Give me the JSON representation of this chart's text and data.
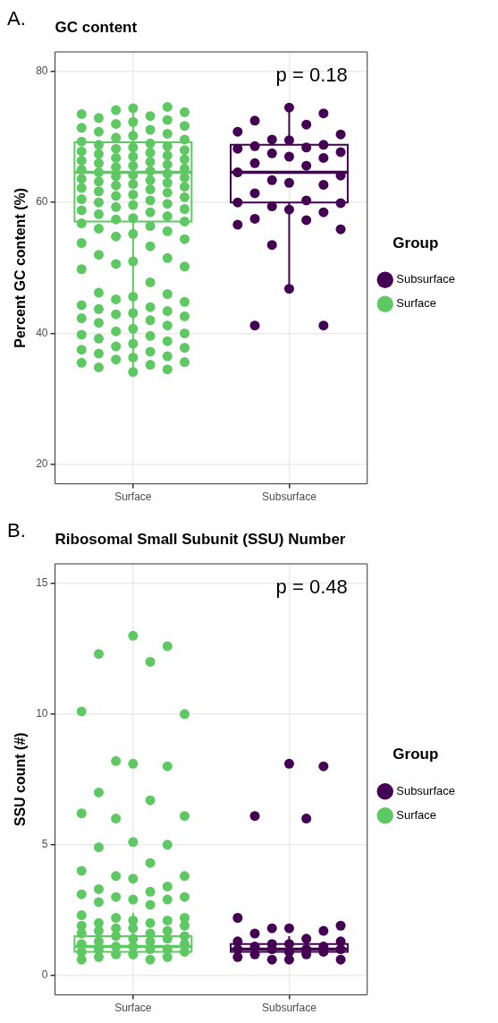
{
  "chart_data": [
    {
      "type": "box",
      "title": "GC content",
      "ylabel": "Percent GC content (%)",
      "legend_title": "Group",
      "legend": "right",
      "grid": true,
      "marker": "circle",
      "categories": [
        "Surface",
        "Subsurface"
      ],
      "colors": [
        "#5ec962",
        "#440154"
      ],
      "boxes": [
        {
          "low": 34.1,
          "q1": 57.1,
          "median": 64.6,
          "q3": 69.2,
          "high": 74.6
        },
        {
          "low": 46.8,
          "q1": 60.0,
          "median": 64.6,
          "q3": 68.8,
          "high": 74.3
        }
      ],
      "ylim": [
        17,
        83
      ],
      "yticks": [
        20,
        40,
        60,
        80
      ],
      "annotations": [
        "A.",
        "p = 0.18"
      ],
      "series": [
        {
          "name": "Subsurface",
          "type": "scatter",
          "color": "#440154",
          "x": [
            "Subsurface",
            "Subsurface",
            "Subsurface",
            "Subsurface",
            "Subsurface",
            "Subsurface",
            "Subsurface",
            "Subsurface",
            "Subsurface",
            "Subsurface",
            "Subsurface",
            "Subsurface",
            "Subsurface",
            "Subsurface",
            "Subsurface",
            "Subsurface",
            "Subsurface",
            "Subsurface",
            "Subsurface",
            "Subsurface",
            "Subsurface",
            "Subsurface",
            "Subsurface",
            "Subsurface",
            "Subsurface",
            "Subsurface",
            "Subsurface",
            "Subsurface",
            "Subsurface",
            "Subsurface",
            "Subsurface",
            "Subsurface",
            "Subsurface",
            "Subsurface",
            "Subsurface",
            "Subsurface",
            "Subsurface",
            "Subsurface"
          ],
          "values": [
            74.5,
            73.6,
            72.5,
            71.9,
            70.8,
            70.4,
            69.6,
            69.5,
            68.8,
            68.6,
            68.4,
            68.2,
            67.7,
            67.5,
            67.0,
            66.8,
            66.0,
            65.6,
            64.6,
            64.1,
            63.4,
            63.0,
            62.7,
            61.4,
            60.3,
            60.0,
            59.9,
            59.4,
            58.9,
            58.5,
            57.5,
            57.3,
            56.6,
            55.9,
            53.5,
            46.8,
            41.2,
            41.2
          ]
        },
        {
          "name": "Surface",
          "type": "scatter",
          "color": "#5ec962",
          "x": [
            "Surface",
            "Surface",
            "Surface",
            "Surface",
            "Surface",
            "Surface",
            "Surface",
            "Surface",
            "Surface",
            "Surface",
            "Surface",
            "Surface",
            "Surface",
            "Surface",
            "Surface",
            "Surface",
            "Surface",
            "Surface",
            "Surface",
            "Surface",
            "Surface",
            "Surface",
            "Surface",
            "Surface",
            "Surface",
            "Surface",
            "Surface",
            "Surface",
            "Surface",
            "Surface",
            "Surface",
            "Surface",
            "Surface",
            "Surface",
            "Surface",
            "Surface",
            "Surface",
            "Surface",
            "Surface",
            "Surface",
            "Surface",
            "Surface",
            "Surface",
            "Surface",
            "Surface",
            "Surface",
            "Surface",
            "Surface",
            "Surface",
            "Surface",
            "Surface",
            "Surface",
            "Surface",
            "Surface",
            "Surface",
            "Surface",
            "Surface",
            "Surface",
            "Surface",
            "Surface",
            "Surface",
            "Surface",
            "Surface",
            "Surface",
            "Surface",
            "Surface",
            "Surface",
            "Surface",
            "Surface",
            "Surface",
            "Surface",
            "Surface",
            "Surface",
            "Surface",
            "Surface",
            "Surface",
            "Surface",
            "Surface",
            "Surface",
            "Surface",
            "Surface",
            "Surface",
            "Surface",
            "Surface",
            "Surface",
            "Surface",
            "Surface",
            "Surface",
            "Surface",
            "Surface",
            "Surface",
            "Surface",
            "Surface",
            "Surface",
            "Surface",
            "Surface",
            "Surface",
            "Surface",
            "Surface",
            "Surface",
            "Surface",
            "Surface",
            "Surface",
            "Surface",
            "Surface",
            "Surface",
            "Surface",
            "Surface",
            "Surface",
            "Surface",
            "Surface",
            "Surface",
            "Surface",
            "Surface",
            "Surface",
            "Surface",
            "Surface",
            "Surface",
            "Surface",
            "Surface",
            "Surface",
            "Surface",
            "Surface",
            "Surface",
            "Surface",
            "Surface",
            "Surface",
            "Surface"
          ],
          "values": [
            34.1,
            34.5,
            34.8,
            35.2,
            35.5,
            35.6,
            36.0,
            36.3,
            36.5,
            36.9,
            37.2,
            37.5,
            37.8,
            38.0,
            38.4,
            38.8,
            39.2,
            39.6,
            39.8,
            40.0,
            40.3,
            40.7,
            41.2,
            41.6,
            42.0,
            42.3,
            42.6,
            42.9,
            43.1,
            43.4,
            43.7,
            44.0,
            44.3,
            44.8,
            45.2,
            45.6,
            46.0,
            46.2,
            47.8,
            49.8,
            50.2,
            50.6,
            51.0,
            51.5,
            52.0,
            53.3,
            53.8,
            54.4,
            54.8,
            55.2,
            55.6,
            56.0,
            56.4,
            56.8,
            57.1,
            57.4,
            57.6,
            57.9,
            58.2,
            58.5,
            58.8,
            59.0,
            59.3,
            59.6,
            59.8,
            60.0,
            60.3,
            60.5,
            60.8,
            61.0,
            61.2,
            61.5,
            61.7,
            62.0,
            62.2,
            62.4,
            62.6,
            62.8,
            63.0,
            63.2,
            63.4,
            63.6,
            63.8,
            64.0,
            64.2,
            64.4,
            64.6,
            64.8,
            65.0,
            65.2,
            65.4,
            65.6,
            65.8,
            66.0,
            66.2,
            66.4,
            66.6,
            66.8,
            67.0,
            67.2,
            67.4,
            67.6,
            67.8,
            68.0,
            68.2,
            68.4,
            68.6,
            68.8,
            69.0,
            69.3,
            69.6,
            69.9,
            70.2,
            70.5,
            70.8,
            71.1,
            71.4,
            71.7,
            72.0,
            72.3,
            72.6,
            72.9,
            73.2,
            73.5,
            73.8,
            74.1,
            74.4,
            74.6
          ]
        }
      ]
    },
    {
      "type": "box",
      "title": "Ribosomal Small Subunit (SSU) Number",
      "ylabel": "SSU count (#)",
      "legend_title": "Group",
      "legend": "right",
      "grid": true,
      "marker": "circle",
      "categories": [
        "Surface",
        "Subsurface"
      ],
      "colors": [
        "#5ec962",
        "#440154"
      ],
      "boxes": [
        {
          "low": 0.6,
          "q1": 0.9,
          "median": 1.1,
          "q3": 1.5,
          "high": 2.4
        },
        {
          "low": 0.6,
          "q1": 0.9,
          "median": 1.0,
          "q3": 1.2,
          "high": 1.5
        }
      ],
      "ylim": [
        -0.75,
        15.75
      ],
      "yticks": [
        0,
        5,
        10,
        15
      ],
      "annotations": [
        "B.",
        "p = 0.48"
      ],
      "series": [
        {
          "name": "Subsurface",
          "type": "scatter",
          "color": "#440154",
          "x": [
            "Subsurface",
            "Subsurface",
            "Subsurface",
            "Subsurface",
            "Subsurface",
            "Subsurface",
            "Subsurface",
            "Subsurface",
            "Subsurface",
            "Subsurface",
            "Subsurface",
            "Subsurface",
            "Subsurface",
            "Subsurface",
            "Subsurface",
            "Subsurface",
            "Subsurface",
            "Subsurface",
            "Subsurface",
            "Subsurface",
            "Subsurface",
            "Subsurface",
            "Subsurface",
            "Subsurface",
            "Subsurface",
            "Subsurface",
            "Subsurface",
            "Subsurface",
            "Subsurface"
          ],
          "values": [
            8.1,
            8.0,
            6.1,
            6.0,
            2.2,
            1.9,
            1.8,
            1.8,
            1.7,
            1.6,
            1.4,
            1.3,
            1.3,
            1.2,
            1.2,
            1.1,
            1.1,
            1.0,
            1.0,
            1.0,
            1.0,
            0.9,
            0.9,
            0.8,
            0.8,
            0.7,
            0.6,
            0.6,
            0.6
          ]
        },
        {
          "name": "Surface",
          "type": "scatter",
          "color": "#5ec962",
          "x": [
            "Surface",
            "Surface",
            "Surface",
            "Surface",
            "Surface",
            "Surface",
            "Surface",
            "Surface",
            "Surface",
            "Surface",
            "Surface",
            "Surface",
            "Surface",
            "Surface",
            "Surface",
            "Surface",
            "Surface",
            "Surface",
            "Surface",
            "Surface",
            "Surface",
            "Surface",
            "Surface",
            "Surface",
            "Surface",
            "Surface",
            "Surface",
            "Surface",
            "Surface",
            "Surface",
            "Surface",
            "Surface",
            "Surface",
            "Surface",
            "Surface",
            "Surface",
            "Surface",
            "Surface",
            "Surface",
            "Surface",
            "Surface",
            "Surface",
            "Surface",
            "Surface",
            "Surface",
            "Surface",
            "Surface",
            "Surface",
            "Surface",
            "Surface",
            "Surface",
            "Surface",
            "Surface",
            "Surface",
            "Surface",
            "Surface",
            "Surface",
            "Surface",
            "Surface",
            "Surface",
            "Surface",
            "Surface",
            "Surface",
            "Surface",
            "Surface",
            "Surface",
            "Surface",
            "Surface"
          ],
          "values": [
            13.0,
            12.6,
            12.3,
            12.0,
            10.1,
            10.0,
            8.2,
            8.1,
            8.0,
            7.0,
            6.7,
            6.2,
            6.1,
            6.0,
            5.1,
            5.0,
            4.9,
            4.3,
            4.0,
            3.8,
            3.8,
            3.7,
            3.4,
            3.3,
            3.2,
            3.1,
            3.0,
            3.0,
            2.9,
            2.9,
            2.8,
            2.7,
            2.3,
            2.2,
            2.2,
            2.1,
            2.1,
            2.0,
            2.0,
            1.9,
            1.9,
            1.8,
            1.8,
            1.7,
            1.7,
            1.6,
            1.6,
            1.5,
            1.5,
            1.4,
            1.4,
            1.3,
            1.3,
            1.2,
            1.2,
            1.1,
            1.1,
            1.0,
            1.0,
            1.0,
            0.9,
            0.9,
            0.8,
            0.8,
            0.7,
            0.7,
            0.6,
            0.6
          ]
        }
      ]
    }
  ]
}
